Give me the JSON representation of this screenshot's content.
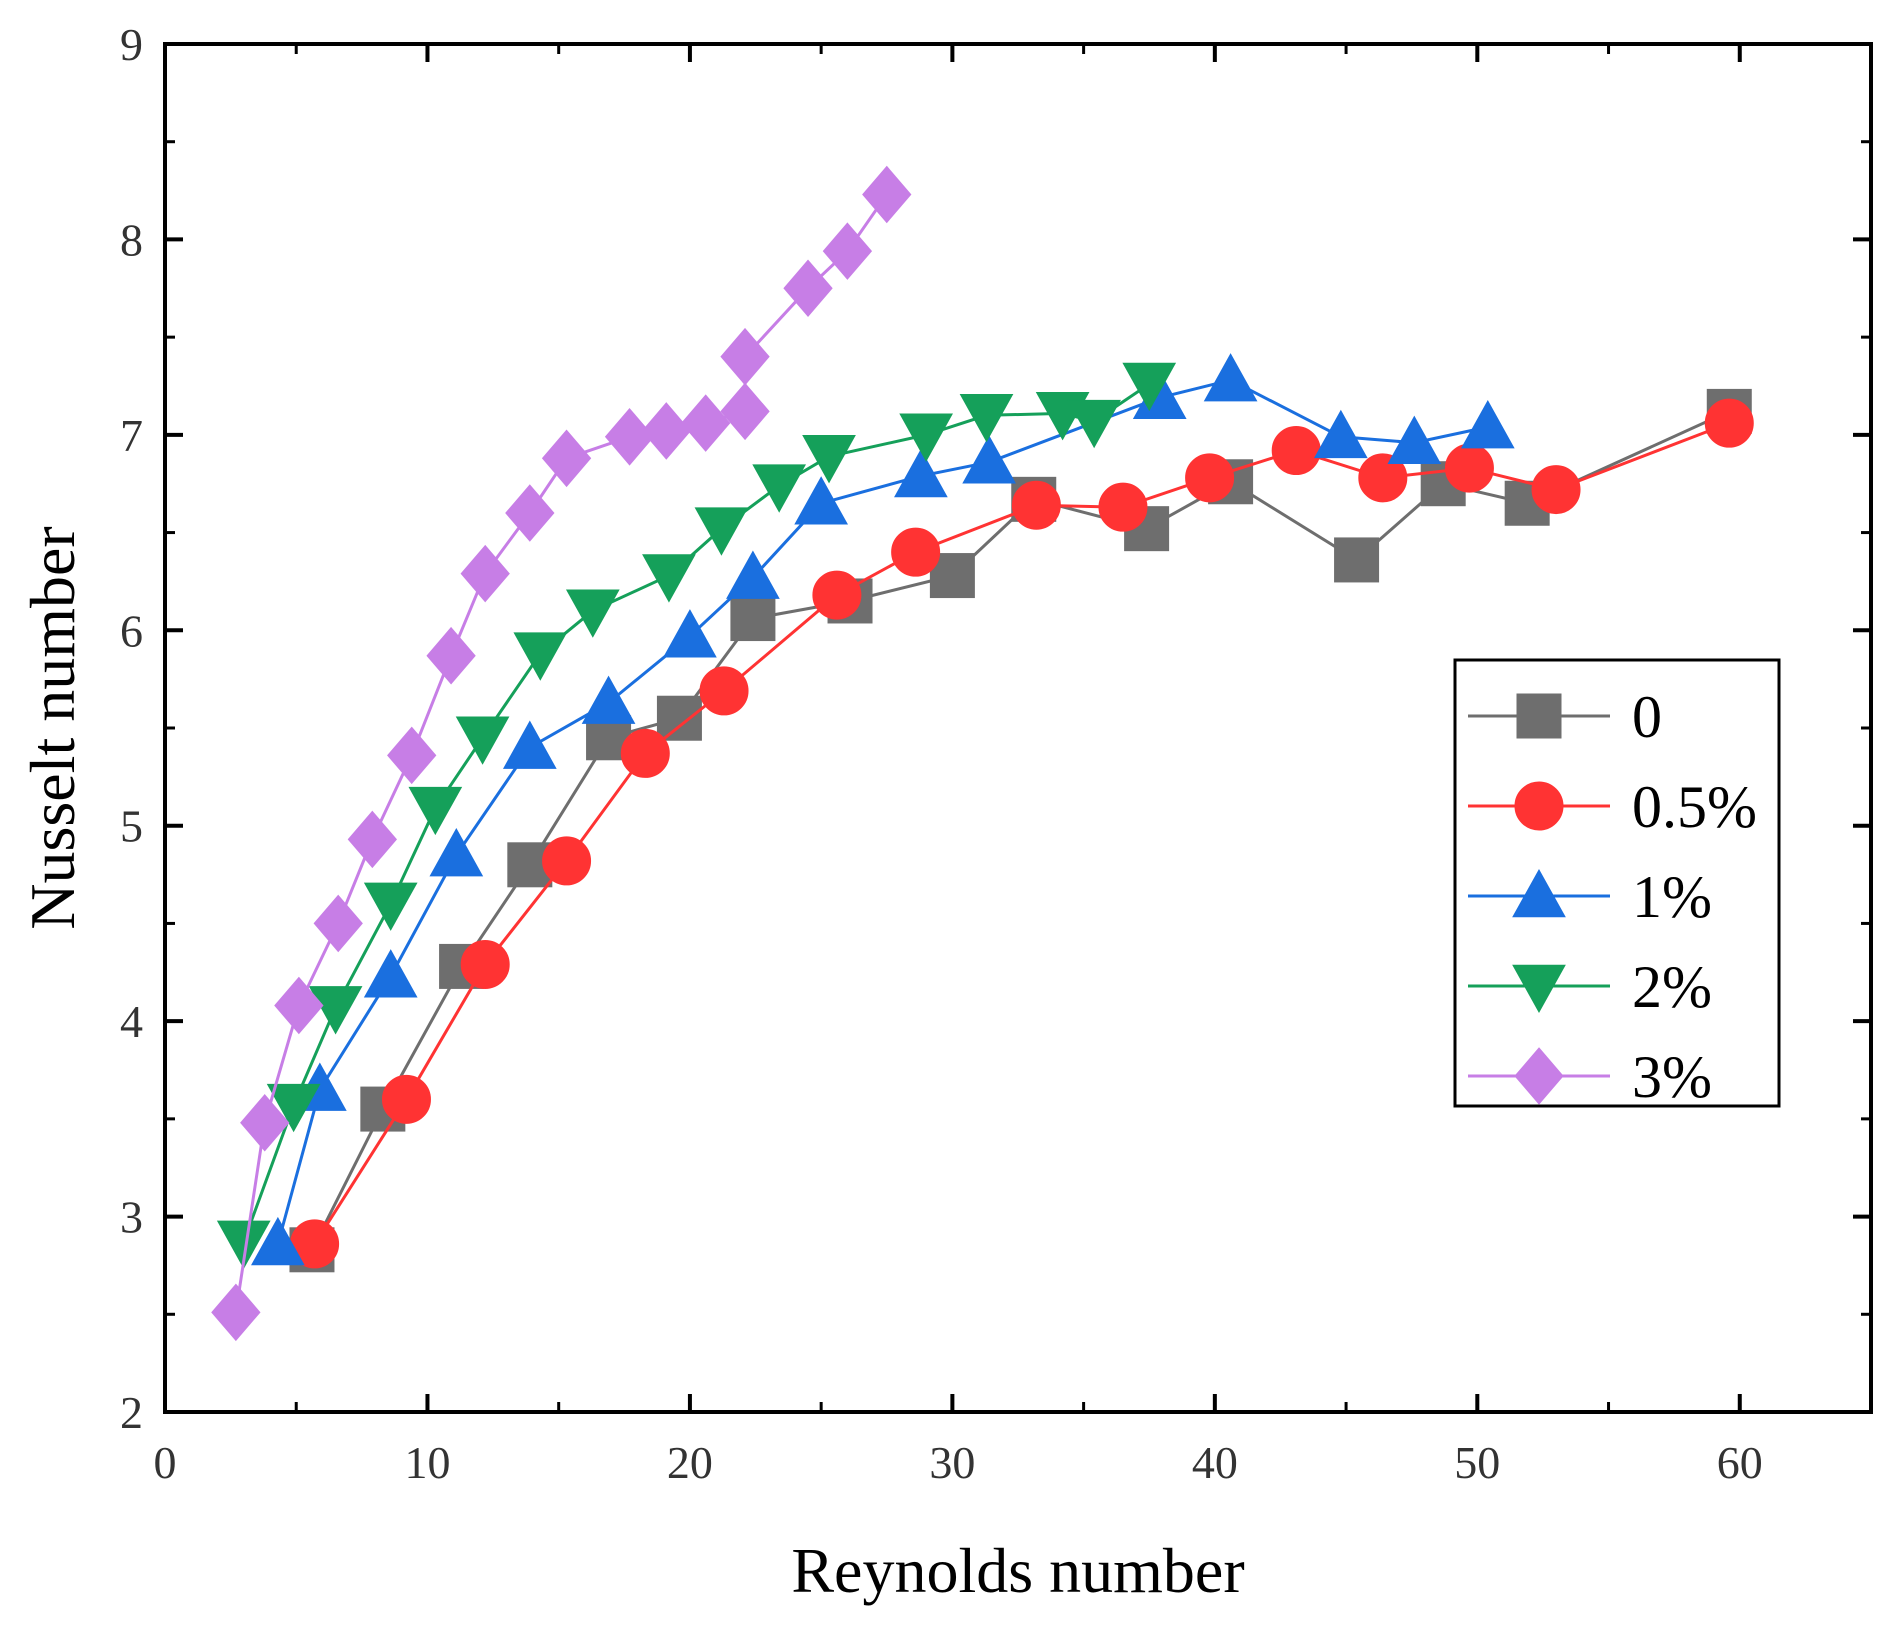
{
  "chart_data": {
    "type": "line",
    "title": "",
    "xlabel": "Reynolds number",
    "ylabel": "Nusselt number",
    "xlim": [
      0,
      65
    ],
    "ylim": [
      2,
      9
    ],
    "xticks": [
      0,
      10,
      20,
      30,
      40,
      50,
      60
    ],
    "yticks": [
      2,
      3,
      4,
      5,
      6,
      7,
      8,
      9
    ],
    "grid": false,
    "legend_position": "right",
    "series": [
      {
        "name": "0",
        "color": "#6e6e6e",
        "marker": "square",
        "x": [
          5.6,
          8.3,
          11.3,
          13.9,
          16.9,
          19.6,
          22.4,
          26.1,
          30.0,
          33.1,
          37.4,
          40.6,
          45.4,
          48.7,
          51.9,
          59.6
        ],
        "y": [
          2.83,
          3.55,
          4.28,
          4.8,
          5.45,
          5.55,
          6.06,
          6.15,
          6.28,
          6.67,
          6.52,
          6.76,
          6.36,
          6.75,
          6.65,
          7.12
        ]
      },
      {
        "name": "0.5%",
        "color": "#ff3333",
        "marker": "circle",
        "x": [
          5.7,
          9.2,
          12.2,
          15.3,
          18.3,
          21.3,
          25.6,
          28.6,
          33.2,
          36.5,
          39.8,
          43.1,
          46.4,
          49.7,
          53.0,
          59.6
        ],
        "y": [
          2.86,
          3.6,
          4.29,
          4.82,
          5.37,
          5.69,
          6.18,
          6.4,
          6.64,
          6.63,
          6.78,
          6.92,
          6.78,
          6.83,
          6.72,
          7.06
        ]
      },
      {
        "name": "1%",
        "color": "#1a6fdf",
        "marker": "triangle-up",
        "x": [
          4.3,
          5.9,
          8.6,
          11.1,
          13.9,
          16.9,
          20.0,
          22.4,
          25.0,
          28.8,
          31.4,
          37.9,
          40.6,
          44.8,
          47.6,
          50.4
        ],
        "y": [
          2.86,
          3.65,
          4.23,
          4.85,
          5.4,
          5.63,
          5.97,
          6.27,
          6.65,
          6.79,
          6.86,
          7.19,
          7.28,
          6.99,
          6.96,
          7.04
        ]
      },
      {
        "name": "2%",
        "color": "#15a05a",
        "marker": "triangle-down",
        "x": [
          3.0,
          4.9,
          6.5,
          8.6,
          10.3,
          12.1,
          14.3,
          16.3,
          19.2,
          21.2,
          23.4,
          25.3,
          29.0,
          31.3,
          34.2,
          35.4,
          37.5
        ],
        "y": [
          2.87,
          3.57,
          4.07,
          4.6,
          5.09,
          5.45,
          5.88,
          6.1,
          6.28,
          6.52,
          6.74,
          6.89,
          7.0,
          7.1,
          7.11,
          7.07,
          7.26
        ]
      },
      {
        "name": "3%",
        "color": "#c77ee6",
        "marker": "diamond",
        "x": [
          2.7,
          3.8,
          5.1,
          6.6,
          7.9,
          9.4,
          10.9,
          12.2,
          13.9,
          15.3,
          17.7,
          19.1,
          20.6,
          22.1,
          22.1,
          24.5,
          26.0,
          27.5
        ],
        "y": [
          2.51,
          3.48,
          4.08,
          4.5,
          4.93,
          5.36,
          5.87,
          6.29,
          6.6,
          6.88,
          6.99,
          7.02,
          7.06,
          7.12,
          7.4,
          7.75,
          7.94,
          8.23
        ]
      }
    ]
  }
}
